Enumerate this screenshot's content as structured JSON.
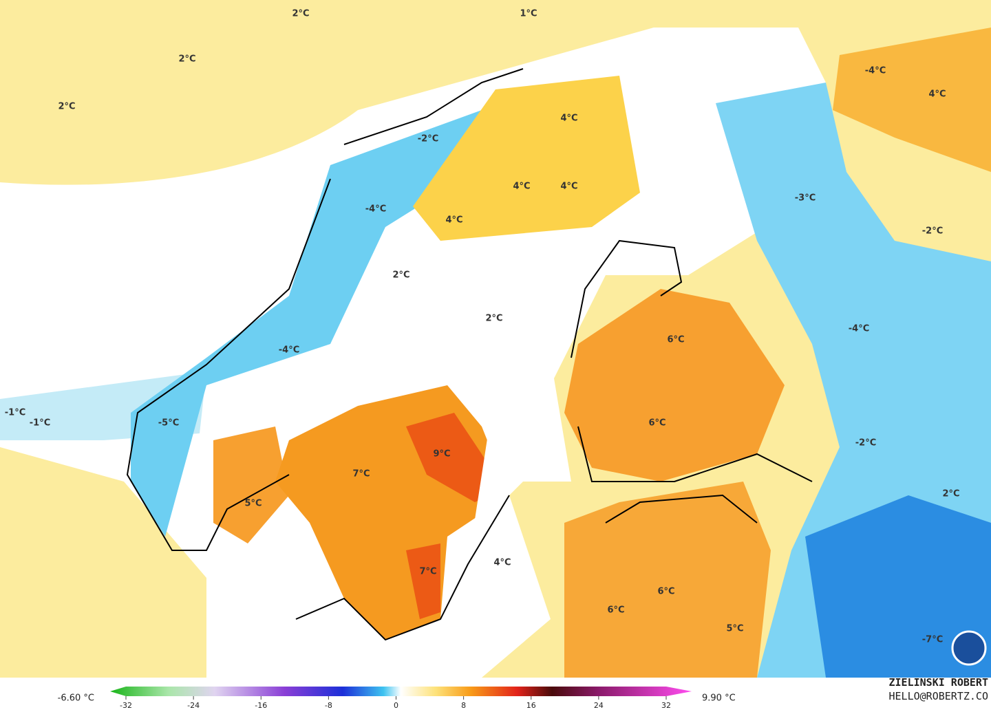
{
  "map": {
    "contour_labels": [
      "2°C",
      "1°C",
      "2°C",
      "2°C",
      "-4°C",
      "4°C",
      "4°C",
      "-2°C",
      "4°C",
      "4°C",
      "-4°C",
      "4°C",
      "-3°C",
      "-2°C",
      "2°C",
      "2°C",
      "6°C",
      "-4°C",
      "-4°C",
      "-1°C",
      "-1°C",
      "-5°C",
      "6°C",
      "-2°C",
      "9°C",
      "7°C",
      "2°C",
      "5°C",
      "4°C",
      "7°C",
      "6°C",
      "6°C",
      "5°C",
      "-7°C"
    ]
  },
  "colorbar": {
    "min_label": "-6.60 °C",
    "max_label": "9.90 °C",
    "ticks": [
      -32,
      -24,
      -16,
      -8,
      0,
      8,
      16,
      24,
      32
    ]
  },
  "credit": {
    "name": "ZIELINSKI ROBERT",
    "email": "HELLO@ROBERTZ.CO"
  }
}
